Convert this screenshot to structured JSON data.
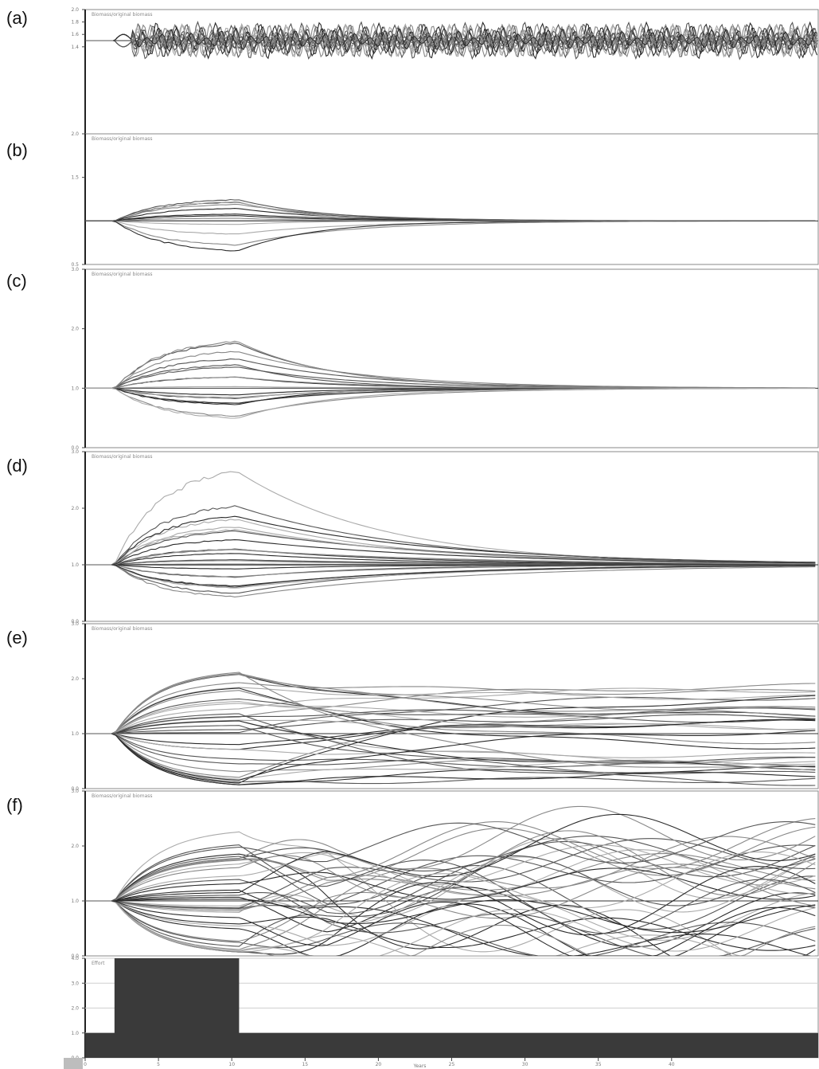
{
  "chart_data": [
    {
      "type": "line",
      "panel_label": "(a)",
      "title": "Biomass/original biomass",
      "ylim": [
        0.0,
        2.0
      ],
      "yticks": [
        "2.0",
        "1.8",
        "1.6",
        "1.4"
      ],
      "reference_value": 1.5,
      "grid": false,
      "legend": "none",
      "pattern": "oscillation",
      "series_count": 18,
      "note": "Biomass ratios oscillate rapidly around 1.5 from year 2 onward"
    },
    {
      "type": "line",
      "panel_label": "(b)",
      "title": "Biomass/original biomass",
      "ylim": [
        0.5,
        2.0
      ],
      "yticks": [
        "2.0",
        "1.5",
        "0.5"
      ],
      "reference_value": 1.0,
      "grid": false,
      "legend": "none",
      "pattern": "pulse",
      "series_count": 14,
      "spread": [
        0.62,
        1.28
      ],
      "return_year": 20
    },
    {
      "type": "line",
      "panel_label": "(c)",
      "title": "Biomass/original biomass",
      "ylim": [
        0.0,
        3.0
      ],
      "yticks": [
        "3.0",
        "2.0",
        "1.0",
        "0.0"
      ],
      "reference_value": 1.0,
      "grid": false,
      "legend": "none",
      "pattern": "pulse",
      "series_count": 20,
      "spread": [
        0.38,
        1.95
      ],
      "return_year": 22
    },
    {
      "type": "line",
      "panel_label": "(d)",
      "title": "Biomass/original biomass",
      "ylim": [
        0.0,
        3.0
      ],
      "yticks": [
        "3.0",
        "2.0",
        "1.0",
        "0.0"
      ],
      "reference_value": 1.0,
      "grid": false,
      "legend": "none",
      "pattern": "pulse",
      "series_count": 26,
      "spread": [
        0.3,
        3.0
      ],
      "return_year": 40
    },
    {
      "type": "line",
      "panel_label": "(e)",
      "title": "Biomass/original biomass",
      "ylim": [
        0.0,
        3.0
      ],
      "yticks": [
        "3.0",
        "2.0",
        "1.0",
        "0.0"
      ],
      "reference_value": 1.0,
      "grid": false,
      "legend": "none",
      "pattern": "divergent",
      "series_count": 34
    },
    {
      "type": "line",
      "panel_label": "(f)",
      "title": "Biomass/original biomass",
      "ylim": [
        0.0,
        3.0
      ],
      "yticks": [
        "3.0",
        "2.0",
        "1.0",
        "0.0"
      ],
      "reference_value": 1.0,
      "grid": false,
      "legend": "none",
      "pattern": "divergent-oscillating",
      "series_count": 38
    },
    {
      "type": "area",
      "panel_label": "",
      "title": "Effort",
      "xlabel": "Years",
      "x": [
        0,
        2,
        2,
        10.5,
        10.5,
        50
      ],
      "values": [
        1.0,
        1.0,
        4.0,
        4.0,
        1.0,
        1.0
      ],
      "ylim": [
        0.0,
        4.0
      ],
      "yticks": [
        "4.0",
        "3.0",
        "2.0",
        "1.0",
        "0.0"
      ],
      "xlim": [
        0,
        50
      ],
      "xticks": [
        "0",
        "5",
        "10",
        "15",
        "20",
        "25",
        "30",
        "35",
        "40"
      ],
      "xtick_values": [
        0,
        5,
        10,
        15,
        20,
        25,
        30,
        35,
        40
      ],
      "grid": true,
      "fill_color": "#3a3a3a"
    }
  ],
  "style": {
    "series_colors": [
      "#2a2a2a",
      "#555555",
      "#888888",
      "#aaaaaa"
    ],
    "effort_fill": "#3a3a3a"
  }
}
